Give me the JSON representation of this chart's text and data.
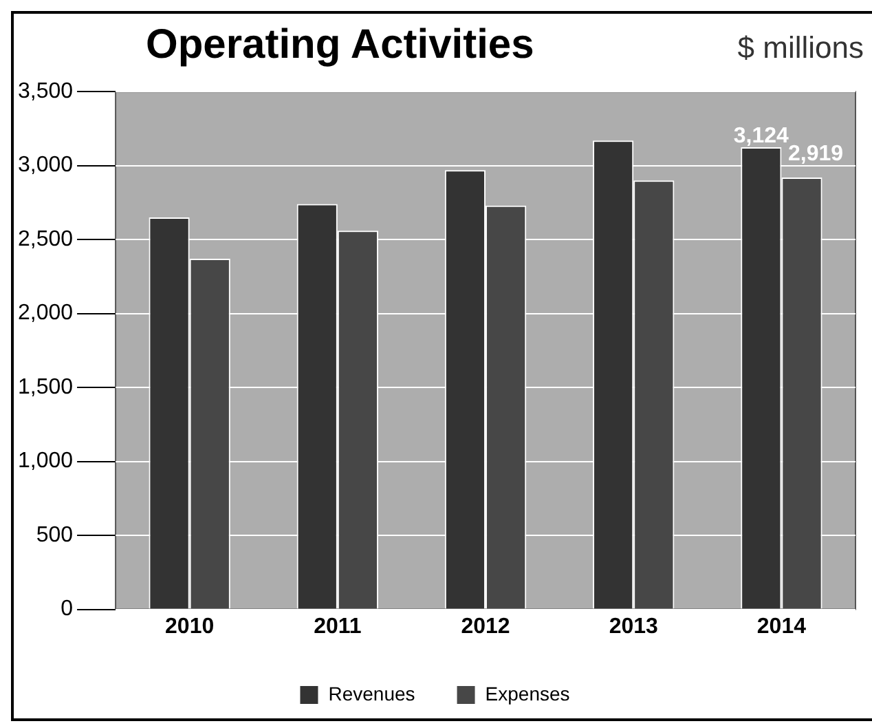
{
  "chart_data": {
    "type": "bar",
    "title": "Operating Activities",
    "subtitle": "$ millions",
    "categories": [
      "2010",
      "2011",
      "2012",
      "2013",
      "2014"
    ],
    "series": [
      {
        "name": "Revenues",
        "color": "#333333",
        "values": [
          2650,
          2740,
          2970,
          3170,
          3124
        ],
        "value_labels": [
          null,
          null,
          null,
          null,
          "3,124"
        ]
      },
      {
        "name": "Expenses",
        "color": "#474747",
        "values": [
          2370,
          2560,
          2730,
          2900,
          2919
        ],
        "value_labels": [
          null,
          null,
          null,
          null,
          "2,919"
        ]
      }
    ],
    "ylim": [
      0,
      3500
    ],
    "yticks": [
      0,
      500,
      {
        "value": 1000,
        "label": "1,000"
      },
      {
        "value": 1500,
        "label": "1,500"
      },
      {
        "value": 2000,
        "label": "2,000"
      },
      {
        "value": 2500,
        "label": "2,500"
      },
      {
        "value": 3000,
        "label": "3,000"
      },
      {
        "value": 3500,
        "label": "3,500"
      }
    ],
    "grid": "y",
    "legend": "bottom"
  }
}
